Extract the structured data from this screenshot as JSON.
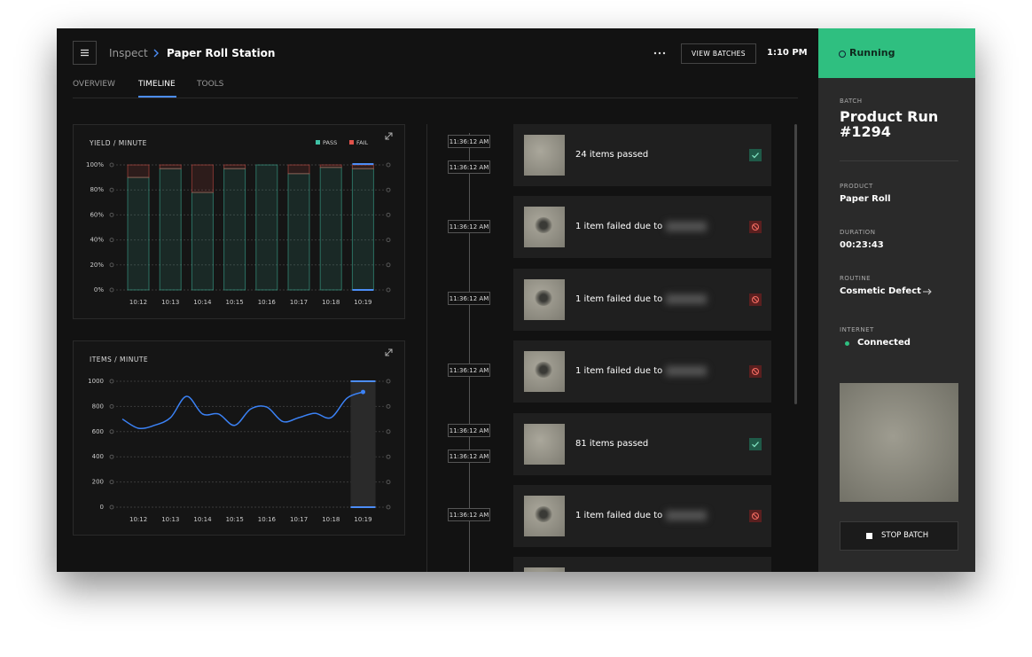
{
  "header": {
    "breadcrumb": [
      "Inspect",
      "Paper Roll Station"
    ],
    "button": "VIEW BATCHES",
    "time": "1:10 PM"
  },
  "tabs": {
    "items": [
      "OVERVIEW",
      "TIMELINE",
      "TOOLS"
    ],
    "active": 1
  },
  "chart_data": [
    {
      "type": "bar",
      "stacked": true,
      "title": "YIELD / MINUTE",
      "categories": [
        "10:12",
        "10:13",
        "10:14",
        "10:15",
        "10:16",
        "10:17",
        "10:18",
        "10:19"
      ],
      "series": [
        {
          "name": "PASS",
          "color": "#3fc1a5",
          "values": [
            90,
            97,
            78,
            97,
            100,
            93,
            98,
            97
          ]
        },
        {
          "name": "FAIL",
          "color": "#e0524a",
          "values": [
            10,
            3,
            22,
            3,
            0,
            7,
            2,
            3
          ]
        }
      ],
      "ylim": [
        0,
        100
      ],
      "yticks": [
        {
          "value": 0,
          "label": "0%"
        },
        {
          "value": 20,
          "label": "20%"
        },
        {
          "value": 40,
          "label": "40%"
        },
        {
          "value": 60,
          "label": "60%"
        },
        {
          "value": 80,
          "label": "80%"
        },
        {
          "value": 100,
          "label": "100%"
        }
      ],
      "grid": true,
      "selected_index": 7
    },
    {
      "type": "line",
      "title": "ITEMS / MINUTE",
      "categories": [
        null,
        "10:12",
        null,
        "10:13",
        null,
        "10:14",
        null,
        "10:15",
        null,
        "10:16",
        null,
        "10:17",
        null,
        "10:18",
        null,
        "10:19"
      ],
      "series": [
        {
          "color": "#3b82f6",
          "values": [
            700,
            627,
            650,
            711,
            880,
            740,
            740,
            650,
            780,
            795,
            680,
            711,
            746,
            711,
            866,
            915
          ]
        }
      ],
      "ylim": [
        0,
        1000
      ],
      "yticks": [
        0,
        200,
        400,
        600,
        800,
        1000
      ],
      "grid": true,
      "selected_index": 15
    }
  ],
  "timeline": {
    "timestamps": [
      "11:36:12 AM",
      "11:36:12 AM",
      "11:36:12 AM",
      "11:36:12 AM",
      "11:36:12 AM",
      "11:36:12 AM",
      "11:36:12 AM",
      "11:36:12 AM"
    ],
    "events": [
      {
        "text": "24 items passed",
        "status": "pass"
      },
      {
        "text": "1 item failed due to",
        "status": "fail"
      },
      {
        "text": "1 item failed due to",
        "status": "fail"
      },
      {
        "text": "1 item failed due to",
        "status": "fail"
      },
      {
        "text": "81 items passed",
        "status": "pass"
      },
      {
        "text": "1 item failed due to",
        "status": "fail"
      }
    ]
  },
  "panel": {
    "status": "Running",
    "batch_label": "BATCH",
    "batch": "Product Run #1294",
    "fields": [
      {
        "label": "PRODUCT",
        "value": "Paper Roll"
      },
      {
        "label": "DURATION",
        "value": "00:23:43"
      },
      {
        "label": "ROUTINE",
        "value": "Cosmetic Defect"
      },
      {
        "label": "INTERNET",
        "value": "Connected"
      }
    ],
    "button": "STOP BATCH"
  }
}
